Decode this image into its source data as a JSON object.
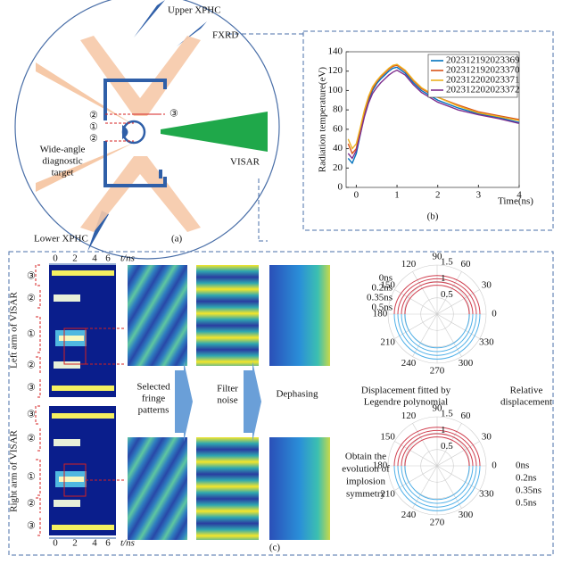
{
  "chart_data": {
    "type": "line",
    "y_label": "Radiation temperature(eV)",
    "x_label": "Time(ns)",
    "panel_label": "(b)",
    "x": [
      -0.2,
      -0.1,
      0,
      0.1,
      0.2,
      0.3,
      0.4,
      0.5,
      0.6,
      0.7,
      0.8,
      0.9,
      1.0,
      1.2,
      1.4,
      1.6,
      1.8,
      2.0,
      2.5,
      3.0,
      3.5,
      4.0
    ],
    "series": [
      {
        "name": "202312192023369",
        "color": "#0072bd",
        "values": [
          30,
          25,
          35,
          55,
          75,
          90,
          100,
          107,
          112,
          116,
          120,
          123,
          124,
          118,
          108,
          100,
          95,
          90,
          82,
          76,
          72,
          67
        ]
      },
      {
        "name": "202312192023370",
        "color": "#d95319",
        "values": [
          45,
          35,
          40,
          60,
          78,
          92,
          102,
          109,
          114,
          118,
          122,
          125,
          126,
          120,
          110,
          102,
          97,
          93,
          85,
          78,
          74,
          70
        ]
      },
      {
        "name": "202312202023371",
        "color": "#edb120",
        "values": [
          50,
          40,
          45,
          62,
          80,
          94,
          104,
          110,
          115,
          119,
          123,
          126,
          127,
          121,
          111,
          103,
          98,
          93,
          84,
          77,
          73,
          69
        ]
      },
      {
        "name": "202312202023372",
        "color": "#7e2f8e",
        "values": [
          35,
          30,
          38,
          55,
          73,
          87,
          97,
          103,
          108,
          112,
          116,
          119,
          121,
          116,
          106,
          98,
          93,
          88,
          80,
          75,
          71,
          66
        ]
      }
    ],
    "xlim": [
      -0.25,
      4
    ],
    "xticks": [
      0,
      1,
      2,
      3,
      4
    ],
    "ylim": [
      0,
      140
    ],
    "yticks": [
      0,
      20,
      40,
      60,
      80,
      100,
      120,
      140
    ],
    "legend": "upper right"
  },
  "panel_a": {
    "upper": "Upper XPHC",
    "fxrd": "FXRD",
    "visar": "VISAR",
    "target": [
      "Wide-angle",
      "diagnostic",
      "target"
    ],
    "lower": "Lower XPHC",
    "label": "(a)",
    "marks": [
      "②",
      "①",
      "②",
      "③"
    ]
  },
  "panel_c": {
    "label": "(c)",
    "time_ticks": [
      "0",
      "2",
      "4",
      "6"
    ],
    "time_unit": "t/ns",
    "left_arm": "Left arm of VISAR",
    "right_arm": "Right arm of VISAR",
    "left_marks": [
      "③",
      "②",
      "①",
      "②",
      "③"
    ],
    "right_marks": [
      "③",
      "②",
      "①",
      "②",
      "③"
    ],
    "selected": [
      "Selected",
      "fringe",
      "patterns"
    ],
    "filter": [
      "Filter",
      "noise"
    ],
    "dephasing": "Dephasing",
    "fitted": [
      "Displacement fitted by",
      "Legendre polynomial"
    ],
    "relative": [
      "Relative",
      "displacement"
    ],
    "evolution": [
      "Obtain the",
      "evolution of",
      "implosion",
      "symmetry"
    ],
    "times_top": [
      "0ns",
      "0.2ns",
      "0.35ns",
      "0.5ns"
    ],
    "times_bottom": [
      "0ns",
      "0.2ns",
      "0.35ns",
      "0.5ns"
    ],
    "angles": [
      "0",
      "30",
      "60",
      "90",
      "120",
      "150",
      "180",
      "210",
      "240",
      "270",
      "300",
      "330"
    ],
    "radii": [
      "0.5",
      "1",
      "1.5"
    ]
  }
}
